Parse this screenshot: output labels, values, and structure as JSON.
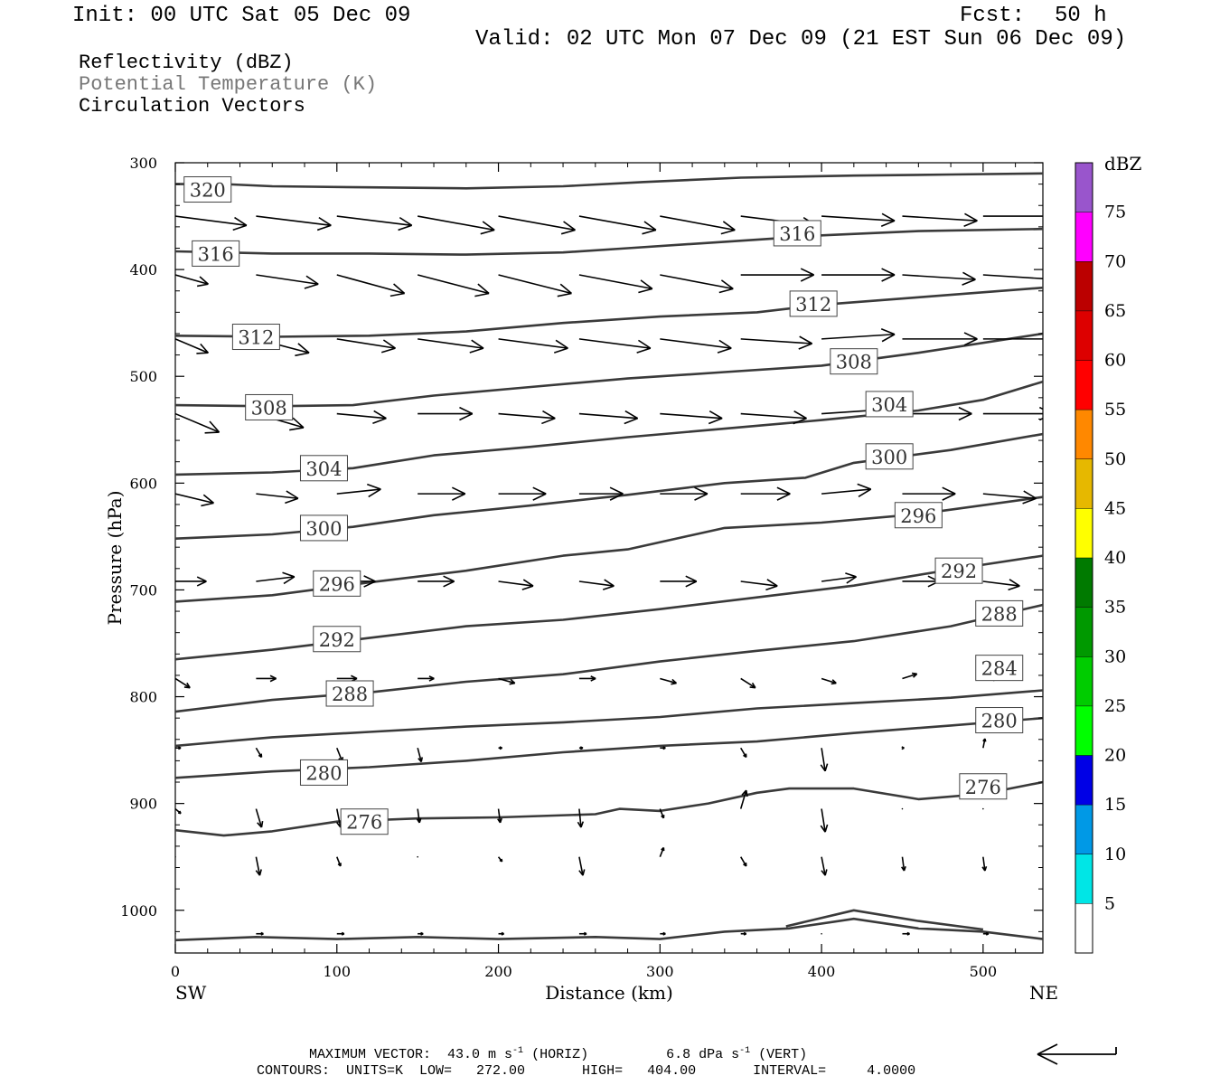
{
  "header": {
    "init": "Init: 00 UTC Sat 05 Dec 09",
    "fcst_label": "Fcst:",
    "fcst_value": "50 h",
    "valid": "Valid: 02 UTC Mon 07 Dec 09 (21 EST Sun 06 Dec 09)"
  },
  "titles": {
    "line1": "Reflectivity (dBZ)",
    "line2": "Potential Temperature (K)",
    "line3": "Circulation Vectors"
  },
  "colors": {
    "theta_title": "#777777",
    "contour": "#3a3a3a",
    "vector": "#000000"
  },
  "footer": {
    "max_prefix": "MAXIMUM VECTOR:  43.0 m s",
    "max_mid": " (HORIZ)",
    "max_vert": "6.8 dPa s",
    "max_tail": " (VERT)",
    "exp": "-1",
    "contours": "CONTOURS:  UNITS=K  LOW=   272.00       HIGH=   404.00       INTERVAL=     4.0000"
  },
  "chart_data": {
    "type": "cross-section",
    "xlabel": "Distance (km)",
    "ylabel": "Pressure (hPa)",
    "xlim": [
      0,
      537
    ],
    "ylim": [
      300,
      1040
    ],
    "x_ticks": [
      0,
      100,
      200,
      300,
      400,
      500
    ],
    "y_ticks": [
      300,
      400,
      500,
      600,
      700,
      800,
      900,
      1000
    ],
    "left_end_label": "SW",
    "right_end_label": "NE",
    "colorbar": {
      "title": "dBZ",
      "levels": [
        5,
        10,
        15,
        20,
        25,
        30,
        35,
        40,
        45,
        50,
        55,
        60,
        65,
        70,
        75
      ],
      "colors": [
        "#00e6e6",
        "#0099e6",
        "#0000e6",
        "#00ff00",
        "#00cc00",
        "#009900",
        "#007a00",
        "#ffff00",
        "#e6b800",
        "#ff8800",
        "#ff0000",
        "#dd0000",
        "#bb0000",
        "#ff00ff",
        "#9955cc",
        "#ffffff"
      ]
    },
    "isentropes": [
      {
        "theta": 320,
        "points": [
          [
            0,
            320
          ],
          [
            30,
            320
          ],
          [
            60,
            322
          ],
          [
            120,
            323
          ],
          [
            180,
            324
          ],
          [
            240,
            322
          ],
          [
            290,
            318
          ],
          [
            350,
            314
          ],
          [
            420,
            312
          ],
          [
            480,
            311
          ],
          [
            537,
            310
          ]
        ],
        "label_at": [
          20,
          325
        ]
      },
      {
        "theta": 316,
        "points": [
          [
            0,
            383
          ],
          [
            60,
            385
          ],
          [
            120,
            385
          ],
          [
            180,
            386
          ],
          [
            240,
            384
          ],
          [
            280,
            380
          ],
          [
            340,
            374
          ],
          [
            400,
            368
          ],
          [
            460,
            364
          ],
          [
            537,
            362
          ]
        ],
        "label_at": [
          25,
          385
        ],
        "extra_label_at": [
          385,
          366
        ]
      },
      {
        "theta": 312,
        "points": [
          [
            0,
            462
          ],
          [
            60,
            463
          ],
          [
            120,
            462
          ],
          [
            180,
            458
          ],
          [
            240,
            450
          ],
          [
            300,
            444
          ],
          [
            360,
            440
          ],
          [
            400,
            433
          ],
          [
            460,
            426
          ],
          [
            537,
            417
          ]
        ],
        "label_at": [
          50,
          463
        ],
        "extra_label_at": [
          395,
          432
        ]
      },
      {
        "theta": 308,
        "points": [
          [
            0,
            527
          ],
          [
            60,
            528
          ],
          [
            110,
            527
          ],
          [
            160,
            518
          ],
          [
            220,
            510
          ],
          [
            280,
            502
          ],
          [
            340,
            496
          ],
          [
            400,
            490
          ],
          [
            460,
            478
          ],
          [
            537,
            460
          ]
        ],
        "label_at": [
          58,
          529
        ],
        "extra_label_at": [
          420,
          486
        ]
      },
      {
        "theta": 304,
        "points": [
          [
            0,
            592
          ],
          [
            60,
            590
          ],
          [
            110,
            586
          ],
          [
            160,
            574
          ],
          [
            220,
            566
          ],
          [
            280,
            557
          ],
          [
            340,
            549
          ],
          [
            400,
            541
          ],
          [
            460,
            532
          ],
          [
            500,
            522
          ],
          [
            537,
            505
          ]
        ],
        "label_at": [
          92,
          586
        ],
        "extra_label_at": [
          442,
          526
        ]
      },
      {
        "theta": 300,
        "points": [
          [
            0,
            652
          ],
          [
            60,
            648
          ],
          [
            110,
            641
          ],
          [
            160,
            630
          ],
          [
            220,
            621
          ],
          [
            280,
            611
          ],
          [
            340,
            600
          ],
          [
            390,
            595
          ],
          [
            420,
            581
          ],
          [
            480,
            569
          ],
          [
            537,
            554
          ]
        ],
        "label_at": [
          92,
          642
        ],
        "extra_label_at": [
          442,
          575
        ]
      },
      {
        "theta": 296,
        "points": [
          [
            0,
            711
          ],
          [
            60,
            705
          ],
          [
            120,
            693
          ],
          [
            180,
            682
          ],
          [
            240,
            668
          ],
          [
            280,
            662
          ],
          [
            340,
            642
          ],
          [
            400,
            637
          ],
          [
            460,
            629
          ],
          [
            537,
            613
          ]
        ],
        "label_at": [
          100,
          694
        ],
        "extra_label_at": [
          460,
          630
        ]
      },
      {
        "theta": 292,
        "points": [
          [
            0,
            765
          ],
          [
            60,
            756
          ],
          [
            120,
            745
          ],
          [
            180,
            734
          ],
          [
            240,
            728
          ],
          [
            300,
            718
          ],
          [
            360,
            707
          ],
          [
            420,
            696
          ],
          [
            480,
            681
          ],
          [
            537,
            668
          ]
        ],
        "label_at": [
          100,
          746
        ],
        "extra_label_at": [
          485,
          682
        ]
      },
      {
        "theta": 288,
        "points": [
          [
            0,
            814
          ],
          [
            60,
            803
          ],
          [
            120,
            796
          ],
          [
            180,
            786
          ],
          [
            240,
            779
          ],
          [
            300,
            767
          ],
          [
            360,
            757
          ],
          [
            420,
            748
          ],
          [
            480,
            734
          ],
          [
            537,
            714
          ]
        ],
        "label_at": [
          108,
          797
        ],
        "extra_label_at": [
          510,
          722
        ]
      },
      {
        "theta": 284,
        "points": [
          [
            0,
            846
          ],
          [
            60,
            838
          ],
          [
            120,
            833
          ],
          [
            180,
            828
          ],
          [
            240,
            824
          ],
          [
            300,
            819
          ],
          [
            360,
            811
          ],
          [
            420,
            806
          ],
          [
            480,
            801
          ],
          [
            537,
            794
          ]
        ],
        "extra_label_at": [
          510,
          773
        ]
      },
      {
        "theta": 280,
        "points": [
          [
            0,
            876
          ],
          [
            60,
            870
          ],
          [
            120,
            866
          ],
          [
            180,
            860
          ],
          [
            240,
            852
          ],
          [
            300,
            846
          ],
          [
            360,
            842
          ],
          [
            420,
            834
          ],
          [
            480,
            827
          ],
          [
            537,
            820
          ]
        ],
        "label_at": [
          92,
          871
        ],
        "extra_label_at": [
          510,
          822
        ]
      },
      {
        "theta": 276,
        "points": [
          [
            0,
            925
          ],
          [
            30,
            930
          ],
          [
            60,
            926
          ],
          [
            100,
            917
          ],
          [
            150,
            914
          ],
          [
            200,
            913
          ],
          [
            260,
            910
          ],
          [
            275,
            905
          ],
          [
            300,
            907
          ],
          [
            330,
            900
          ],
          [
            360,
            890
          ],
          [
            380,
            886
          ],
          [
            420,
            886
          ],
          [
            460,
            896
          ],
          [
            500,
            891
          ],
          [
            537,
            880
          ]
        ],
        "label_at": [
          117,
          917
        ],
        "extra_label_at": [
          500,
          884
        ]
      },
      {
        "theta": 272,
        "points": [
          [
            0,
            1028
          ],
          [
            50,
            1025
          ],
          [
            100,
            1027
          ],
          [
            150,
            1025
          ],
          [
            200,
            1027
          ],
          [
            260,
            1025
          ],
          [
            300,
            1027
          ],
          [
            340,
            1020
          ],
          [
            380,
            1017
          ],
          [
            420,
            1008
          ],
          [
            460,
            1017
          ],
          [
            500,
            1020
          ],
          [
            537,
            1027
          ]
        ]
      },
      {
        "theta": 272,
        "points": [
          [
            378,
            1015
          ],
          [
            420,
            1000
          ],
          [
            460,
            1010
          ],
          [
            500,
            1018
          ]
        ]
      }
    ],
    "vectors": {
      "x": [
        0,
        50,
        100,
        150,
        200,
        250,
        300,
        350,
        400,
        450,
        500
      ],
      "rows": [
        {
          "p": 350,
          "u": [
            39,
            41,
            41,
            42,
            42,
            42,
            41,
            41,
            40,
            41,
            40
          ],
          "w": [
            -0.8,
            -0.8,
            -0.8,
            -1.2,
            -1.2,
            -1.2,
            -1.2,
            -0.8,
            -0.4,
            -0.4,
            0
          ]
        },
        {
          "p": 405,
          "u": [
            18,
            34,
            37,
            39,
            40,
            40,
            40,
            40,
            40,
            40,
            40
          ],
          "w": [
            -0.8,
            -0.8,
            -1.6,
            -1.6,
            -1.6,
            -1.2,
            -1.2,
            0,
            0,
            -0.4,
            -0.4
          ]
        },
        {
          "p": 465,
          "u": [
            18,
            29,
            32,
            36,
            38,
            39,
            39,
            39,
            40,
            41,
            40
          ],
          "w": [
            -1.2,
            -1.2,
            -0.8,
            -0.8,
            -0.8,
            -0.8,
            -0.8,
            -0.4,
            0.4,
            0,
            0
          ]
        },
        {
          "p": 535,
          "u": [
            24,
            26,
            27,
            30,
            31,
            32,
            34,
            36,
            38,
            38,
            38
          ],
          "w": [
            -1.6,
            -1.2,
            -0.4,
            0,
            -0.4,
            -0.4,
            -0.4,
            -0.4,
            0.4,
            0,
            0
          ]
        },
        {
          "p": 610,
          "u": [
            21,
            23,
            24,
            26,
            26,
            24,
            26,
            27,
            27,
            29,
            29
          ],
          "w": [
            -0.8,
            -0.4,
            0.4,
            0,
            0,
            0,
            0,
            0,
            0.4,
            0,
            -0.4
          ]
        },
        {
          "p": 692,
          "u": [
            17,
            21,
            21,
            20,
            19,
            19,
            20,
            20,
            19,
            20,
            20
          ],
          "w": [
            0,
            0.4,
            0,
            0,
            -0.4,
            -0.4,
            0,
            -0.4,
            0.4,
            0,
            -0.4
          ]
        },
        {
          "p": 783,
          "u": [
            8,
            11,
            11,
            9,
            9,
            9,
            9,
            8,
            8,
            8,
            8
          ],
          "w": [
            -0.8,
            0,
            0,
            0,
            -0.4,
            0,
            -0.4,
            -0.8,
            -0.4,
            0.4,
            0
          ]
        },
        {
          "p": 848,
          "u": [
            3,
            3,
            3,
            2,
            2,
            2,
            3,
            3,
            2,
            1,
            1
          ],
          "w": [
            0,
            -0.8,
            -1.2,
            -1.2,
            0,
            0,
            0,
            -0.8,
            -2.0,
            0,
            0.8
          ]
        },
        {
          "p": 905,
          "u": [
            3,
            3,
            2,
            1,
            1,
            1,
            2,
            3,
            2,
            0,
            0
          ],
          "w": [
            -0.4,
            -1.6,
            -1.6,
            -1.2,
            -1.2,
            -1.6,
            -0.8,
            1.6,
            -2.0,
            0,
            0
          ]
        },
        {
          "p": 950,
          "u": [
            0,
            2,
            2,
            0,
            2,
            2,
            2,
            3,
            2,
            1,
            1
          ],
          "w": [
            0,
            -1.6,
            -0.8,
            0,
            -0.4,
            -1.6,
            0.8,
            -0.8,
            -1.6,
            -1.2,
            -1.2
          ]
        },
        {
          "p": 1022,
          "u": [
            0,
            4,
            4,
            3,
            3,
            4,
            3,
            3,
            0,
            4,
            3
          ],
          "w": [
            0,
            0,
            0,
            0,
            0,
            0,
            0,
            0,
            0,
            0,
            0
          ]
        }
      ]
    },
    "reference_vector": {
      "u_ms": 43.0,
      "w_dpa": 6.8
    }
  }
}
